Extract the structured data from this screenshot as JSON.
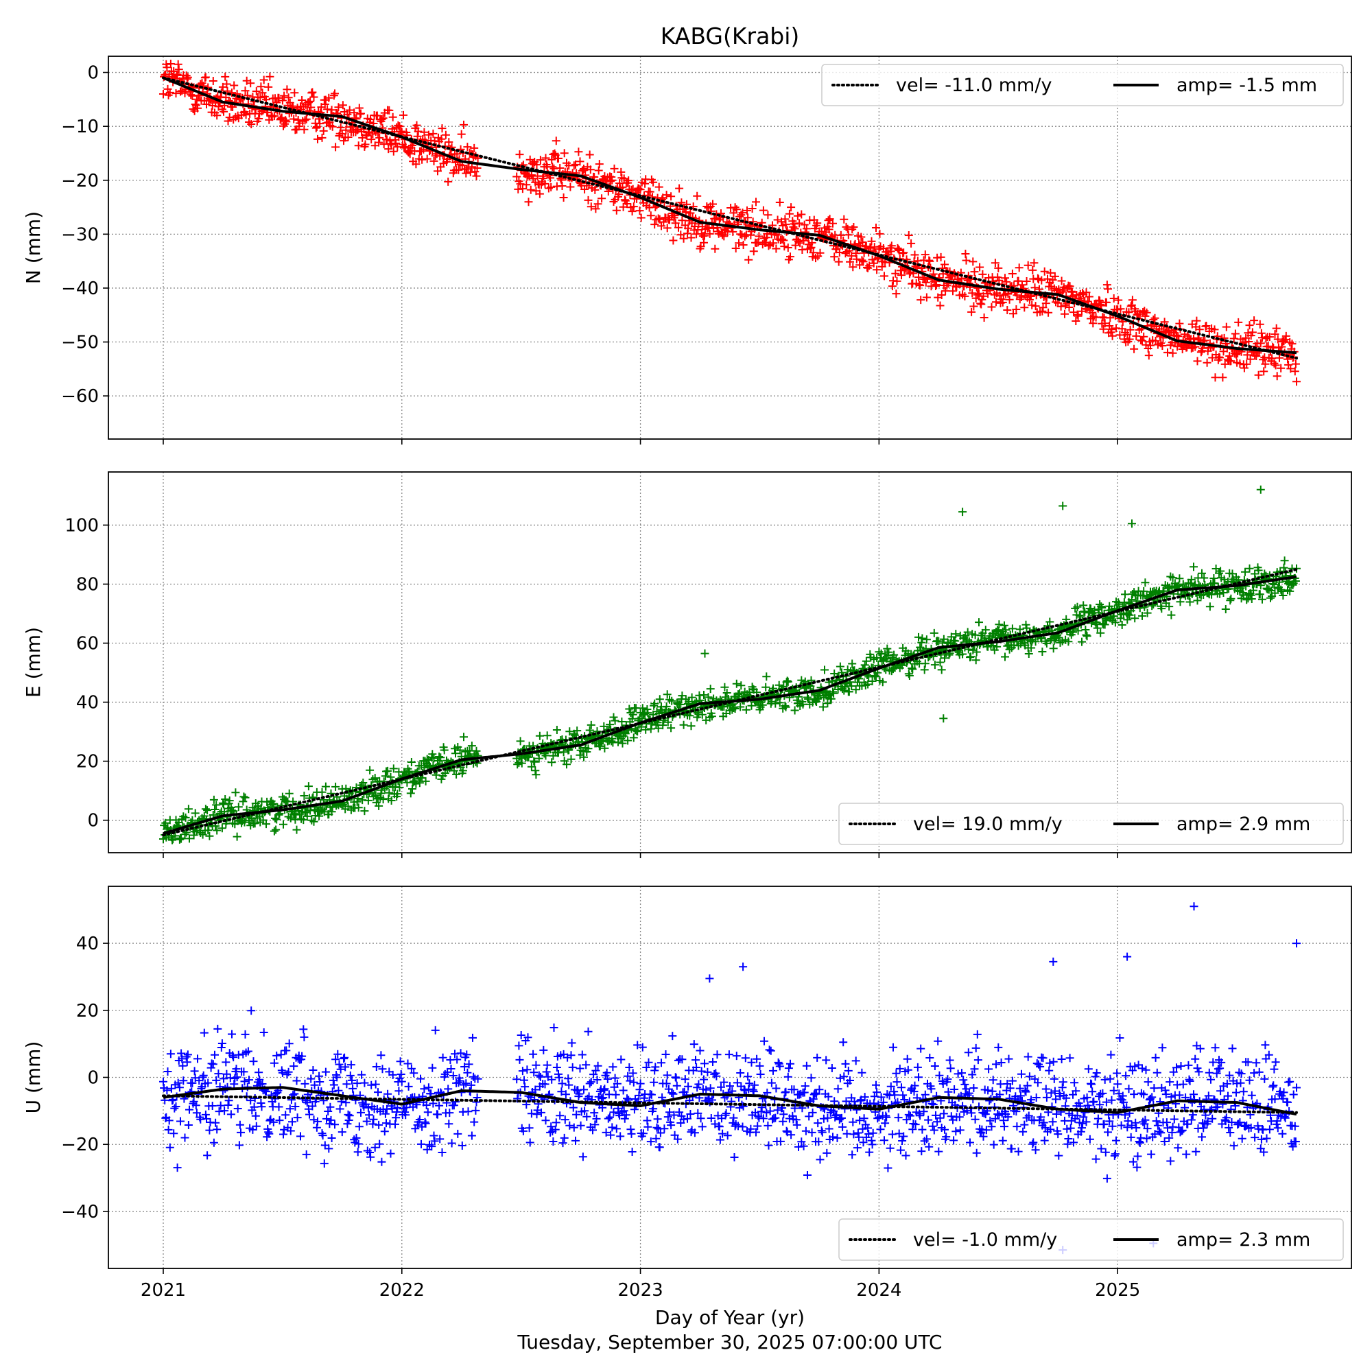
{
  "chart_data": {
    "type": "scatter",
    "title": "KABG(Krabi)",
    "xlabel": "Day of Year (yr)",
    "subtitle": "Tuesday, September 30, 2025 07:00:00 UTC",
    "x_ticks": [
      "2021",
      "2022",
      "2023",
      "2024",
      "2025"
    ],
    "xlim": [
      2020.77,
      2025.98
    ],
    "grid": true,
    "colors": {
      "N": "#ff0000",
      "E": "#008000",
      "U": "#0000ff",
      "model": "#000000"
    },
    "panels": [
      {
        "id": "N",
        "ylabel": "N (mm)",
        "ylim": [
          -68,
          3
        ],
        "y_ticks": [
          0,
          -10,
          -20,
          -30,
          -40,
          -50,
          -60
        ],
        "legend_position": "top-right",
        "legend": {
          "velocity_label": "vel= -11.0 mm/y",
          "amplitude_label": "amp= -1.5 mm"
        },
        "velocity_mm_per_yr": -11.0,
        "annual_amplitude_mm": -1.5,
        "series": [
          {
            "name": "vel= -11.0 mm/y",
            "style": "dotted",
            "x": [
              2021.0,
              2025.75
            ],
            "y": [
              -1.0,
              -53.0
            ]
          },
          {
            "name": "amp= -1.5 mm",
            "style": "solid",
            "x": [
              2021.0,
              2021.25,
              2021.5,
              2021.75,
              2022.0,
              2022.25,
              2022.5,
              2022.75,
              2023.0,
              2023.25,
              2023.5,
              2023.75,
              2024.0,
              2024.25,
              2024.5,
              2024.75,
              2025.0,
              2025.25,
              2025.5,
              2025.75
            ],
            "y": [
              -1.0,
              -5.5,
              -7.2,
              -8.2,
              -12.0,
              -16.5,
              -18.0,
              -19.2,
              -23.2,
              -27.8,
              -29.2,
              -30.2,
              -34.0,
              -38.5,
              -40.2,
              -41.2,
              -45.2,
              -49.8,
              -51.2,
              -52.0
            ]
          }
        ],
        "observations": {
          "marker": "+",
          "start": 2021.0,
          "end": 2025.75,
          "gap": [
            2022.32,
            2022.48
          ],
          "trend_start": -1.0,
          "trend_end": -53.0,
          "scatter_sd_mm": 2.5
        }
      },
      {
        "id": "E",
        "ylabel": "E (mm)",
        "ylim": [
          -11,
          118
        ],
        "y_ticks": [
          0,
          20,
          40,
          60,
          80,
          100
        ],
        "legend_position": "bottom-right",
        "legend": {
          "velocity_label": "vel= 19.0 mm/y",
          "amplitude_label": "amp= 2.9 mm"
        },
        "velocity_mm_per_yr": 19.0,
        "annual_amplitude_mm": 2.9,
        "series": [
          {
            "name": "vel= 19.0 mm/y",
            "style": "dotted",
            "x": [
              2021.0,
              2025.75
            ],
            "y": [
              -5.0,
              85.0
            ]
          },
          {
            "name": "amp= 2.9 mm",
            "style": "solid",
            "x": [
              2021.0,
              2021.25,
              2021.5,
              2021.75,
              2022.0,
              2022.25,
              2022.5,
              2022.75,
              2023.0,
              2023.25,
              2023.5,
              2023.75,
              2024.0,
              2024.25,
              2024.5,
              2024.75,
              2025.0,
              2025.25,
              2025.5,
              2025.75
            ],
            "y": [
              -4.5,
              1.5,
              3.5,
              6.5,
              14.0,
              20.5,
              22.5,
              25.5,
              33.0,
              39.5,
              41.0,
              44.0,
              51.5,
              58.5,
              60.5,
              63.5,
              71.0,
              78.0,
              79.5,
              82.5
            ]
          }
        ],
        "observations": {
          "marker": "+",
          "start": 2021.0,
          "end": 2025.75,
          "gap": [
            2022.32,
            2022.48
          ],
          "trend_start": -4.0,
          "trend_end": 82.0,
          "scatter_sd_mm": 3.0
        },
        "outliers": {
          "x": [
            2023.27,
            2024.27,
            2024.35,
            2024.77,
            2025.06,
            2025.6
          ],
          "y": [
            56.5,
            34.5,
            104.5,
            106.5,
            100.5,
            112.0
          ]
        }
      },
      {
        "id": "U",
        "ylabel": "U (mm)",
        "ylim": [
          -57,
          57
        ],
        "y_ticks": [
          40,
          20,
          0,
          -20,
          -40
        ],
        "legend_position": "bottom-right",
        "legend": {
          "velocity_label": "vel= -1.0 mm/y",
          "amplitude_label": "amp= 2.3 mm"
        },
        "velocity_mm_per_yr": -1.0,
        "annual_amplitude_mm": 2.3,
        "series": [
          {
            "name": "vel= -1.0 mm/y",
            "style": "dotted",
            "x": [
              2021.0,
              2025.75
            ],
            "y": [
              -5.5,
              -10.5
            ]
          },
          {
            "name": "amp= 2.3 mm",
            "style": "solid",
            "x": [
              2021.0,
              2021.25,
              2021.5,
              2021.75,
              2022.0,
              2022.25,
              2022.5,
              2022.75,
              2023.0,
              2023.25,
              2023.5,
              2023.75,
              2024.0,
              2024.25,
              2024.5,
              2024.75,
              2025.0,
              2025.25,
              2025.5,
              2025.75
            ],
            "y": [
              -6.0,
              -3.5,
              -3.0,
              -5.5,
              -8.0,
              -4.0,
              -4.5,
              -7.5,
              -8.5,
              -5.0,
              -5.5,
              -8.5,
              -9.5,
              -6.0,
              -6.5,
              -9.5,
              -10.5,
              -7.0,
              -7.5,
              -11.0
            ]
          }
        ],
        "observations": {
          "marker": "+",
          "start": 2021.0,
          "end": 2025.75,
          "gap": [
            2022.32,
            2022.48
          ],
          "trend_start": -5.5,
          "trend_end": -10.5,
          "scatter_sd_mm": 9.0
        },
        "outliers": {
          "x": [
            2023.29,
            2023.43,
            2024.73,
            2025.04,
            2025.32,
            2025.75,
            2024.77,
            2025.15
          ],
          "y": [
            29.5,
            33.0,
            34.5,
            36.0,
            51.0,
            40.0,
            -51.5,
            -49.5
          ]
        }
      }
    ]
  }
}
